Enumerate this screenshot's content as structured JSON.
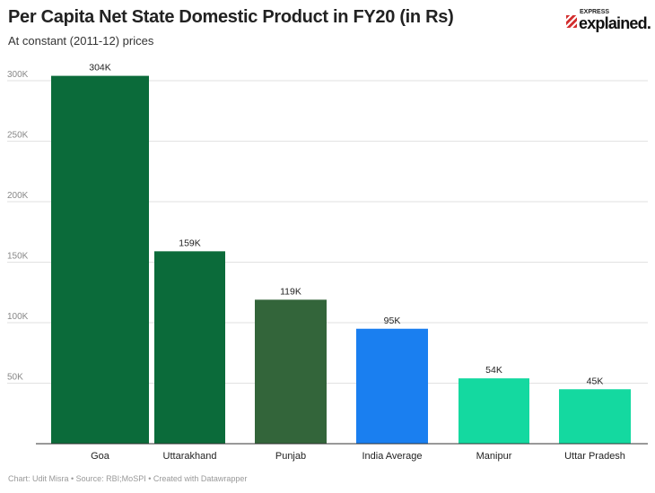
{
  "header": {
    "title": "Per Capita Net State Domestic Product in FY20 (in Rs)",
    "subtitle": "At constant (2011-12) prices"
  },
  "logo": {
    "small": "EXPRESS",
    "big": "explained."
  },
  "footer": "Chart: Udit Misra • Source: RBI;MoSPI • Created with Datawrapper",
  "chart_data": {
    "type": "bar",
    "title": "Per Capita Net State Domestic Product in FY20 (in Rs)",
    "subtitle": "At constant (2011-12) prices",
    "categories": [
      "Goa",
      "Uttarakhand",
      "Punjab",
      "India Average",
      "Manipur",
      "Uttar Pradesh"
    ],
    "values": [
      304,
      159,
      119,
      95,
      54,
      45
    ],
    "labels": [
      "304K",
      "159K",
      "119K",
      "95K",
      "54K",
      "45K"
    ],
    "colors": [
      "#0b6b3a",
      "#0b6b3a",
      "#33653a",
      "#1a7ff0",
      "#14d9a0",
      "#14d9a0"
    ],
    "yticks": [
      50,
      100,
      150,
      200,
      250,
      300
    ],
    "ytick_labels": [
      "50K",
      "100K",
      "150K",
      "200K",
      "250K",
      "300K"
    ],
    "ylim": [
      0,
      304
    ],
    "units": "thousand Rs",
    "grid": true
  }
}
